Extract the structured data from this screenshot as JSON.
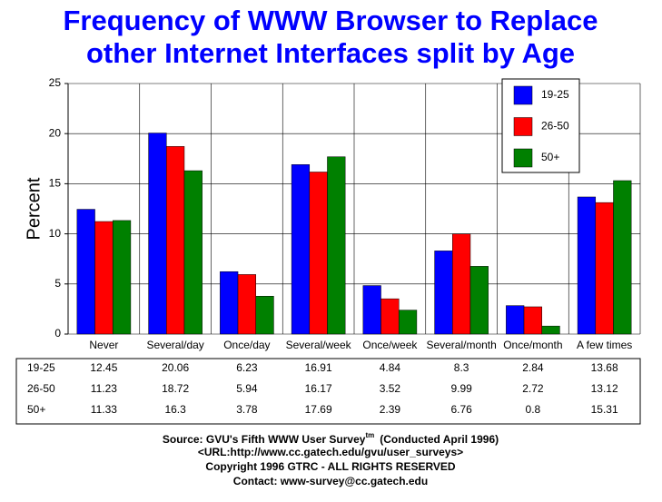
{
  "chart_data": {
    "type": "bar",
    "title": [
      "Frequency of WWW Browser  to Replace",
      "other Internet Interfaces split by Age"
    ],
    "y_label": "Percent",
    "categories": [
      "Never",
      "Several/day",
      "Once/day",
      "Several/week",
      "Once/week",
      "Several/month",
      "Once/month",
      "A few times"
    ],
    "series": [
      {
        "name": "19-25",
        "color": "#0000ff",
        "values": [
          12.45,
          20.06,
          6.23,
          16.91,
          4.84,
          8.3,
          2.84,
          13.68
        ]
      },
      {
        "name": "26-50",
        "color": "#ff0000",
        "values": [
          11.23,
          18.72,
          5.94,
          16.17,
          3.52,
          9.99,
          2.72,
          13.12
        ]
      },
      {
        "name": "50+",
        "color": "#008000",
        "values": [
          11.33,
          16.3,
          3.78,
          17.69,
          2.39,
          6.76,
          0.8,
          15.31
        ]
      }
    ],
    "ylim": [
      0,
      25
    ],
    "yticks": [
      0,
      5,
      10,
      15,
      20,
      25
    ],
    "grid": true,
    "footer": {
      "source": "Source: GVU's Fifth WWW User Survey",
      "source_superscript": "tm",
      "source_note": "(Conducted April 1996)",
      "lines": [
        "<URL:http://www.cc.gatech.edu/gvu/user_surveys>",
        "Copyright 1996 GTRC -  ALL RIGHTS RESERVED",
        "Contact: www-survey@cc.gatech.edu"
      ]
    }
  }
}
